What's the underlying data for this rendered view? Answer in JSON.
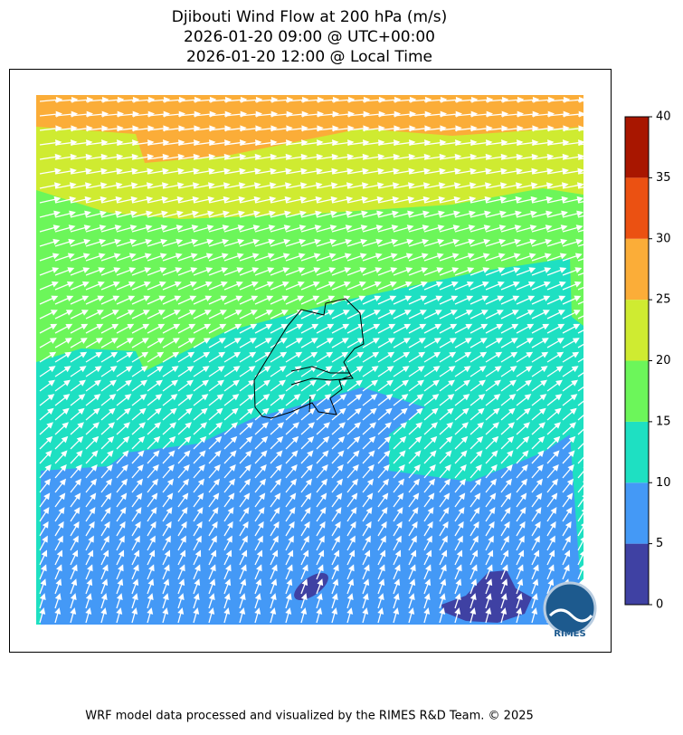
{
  "title": [
    "Djibouti Wind Flow at 200 hPa (m/s)",
    "2026-01-20 09:00 @ UTC+00:00",
    "2026-01-20 12:00 @ Local Time"
  ],
  "colorbar": {
    "ticks": [
      0,
      5,
      10,
      15,
      20,
      25,
      30,
      35,
      40
    ],
    "colors": [
      "#3f41a3",
      "#4499f6",
      "#1ee0c2",
      "#6cf65a",
      "#cfeb31",
      "#fbad38",
      "#eb5112",
      "#a81600"
    ]
  },
  "logo": "RIMES",
  "footer": "WRF model data processed and visualized by the RIMES R&D Team. © 2025"
}
